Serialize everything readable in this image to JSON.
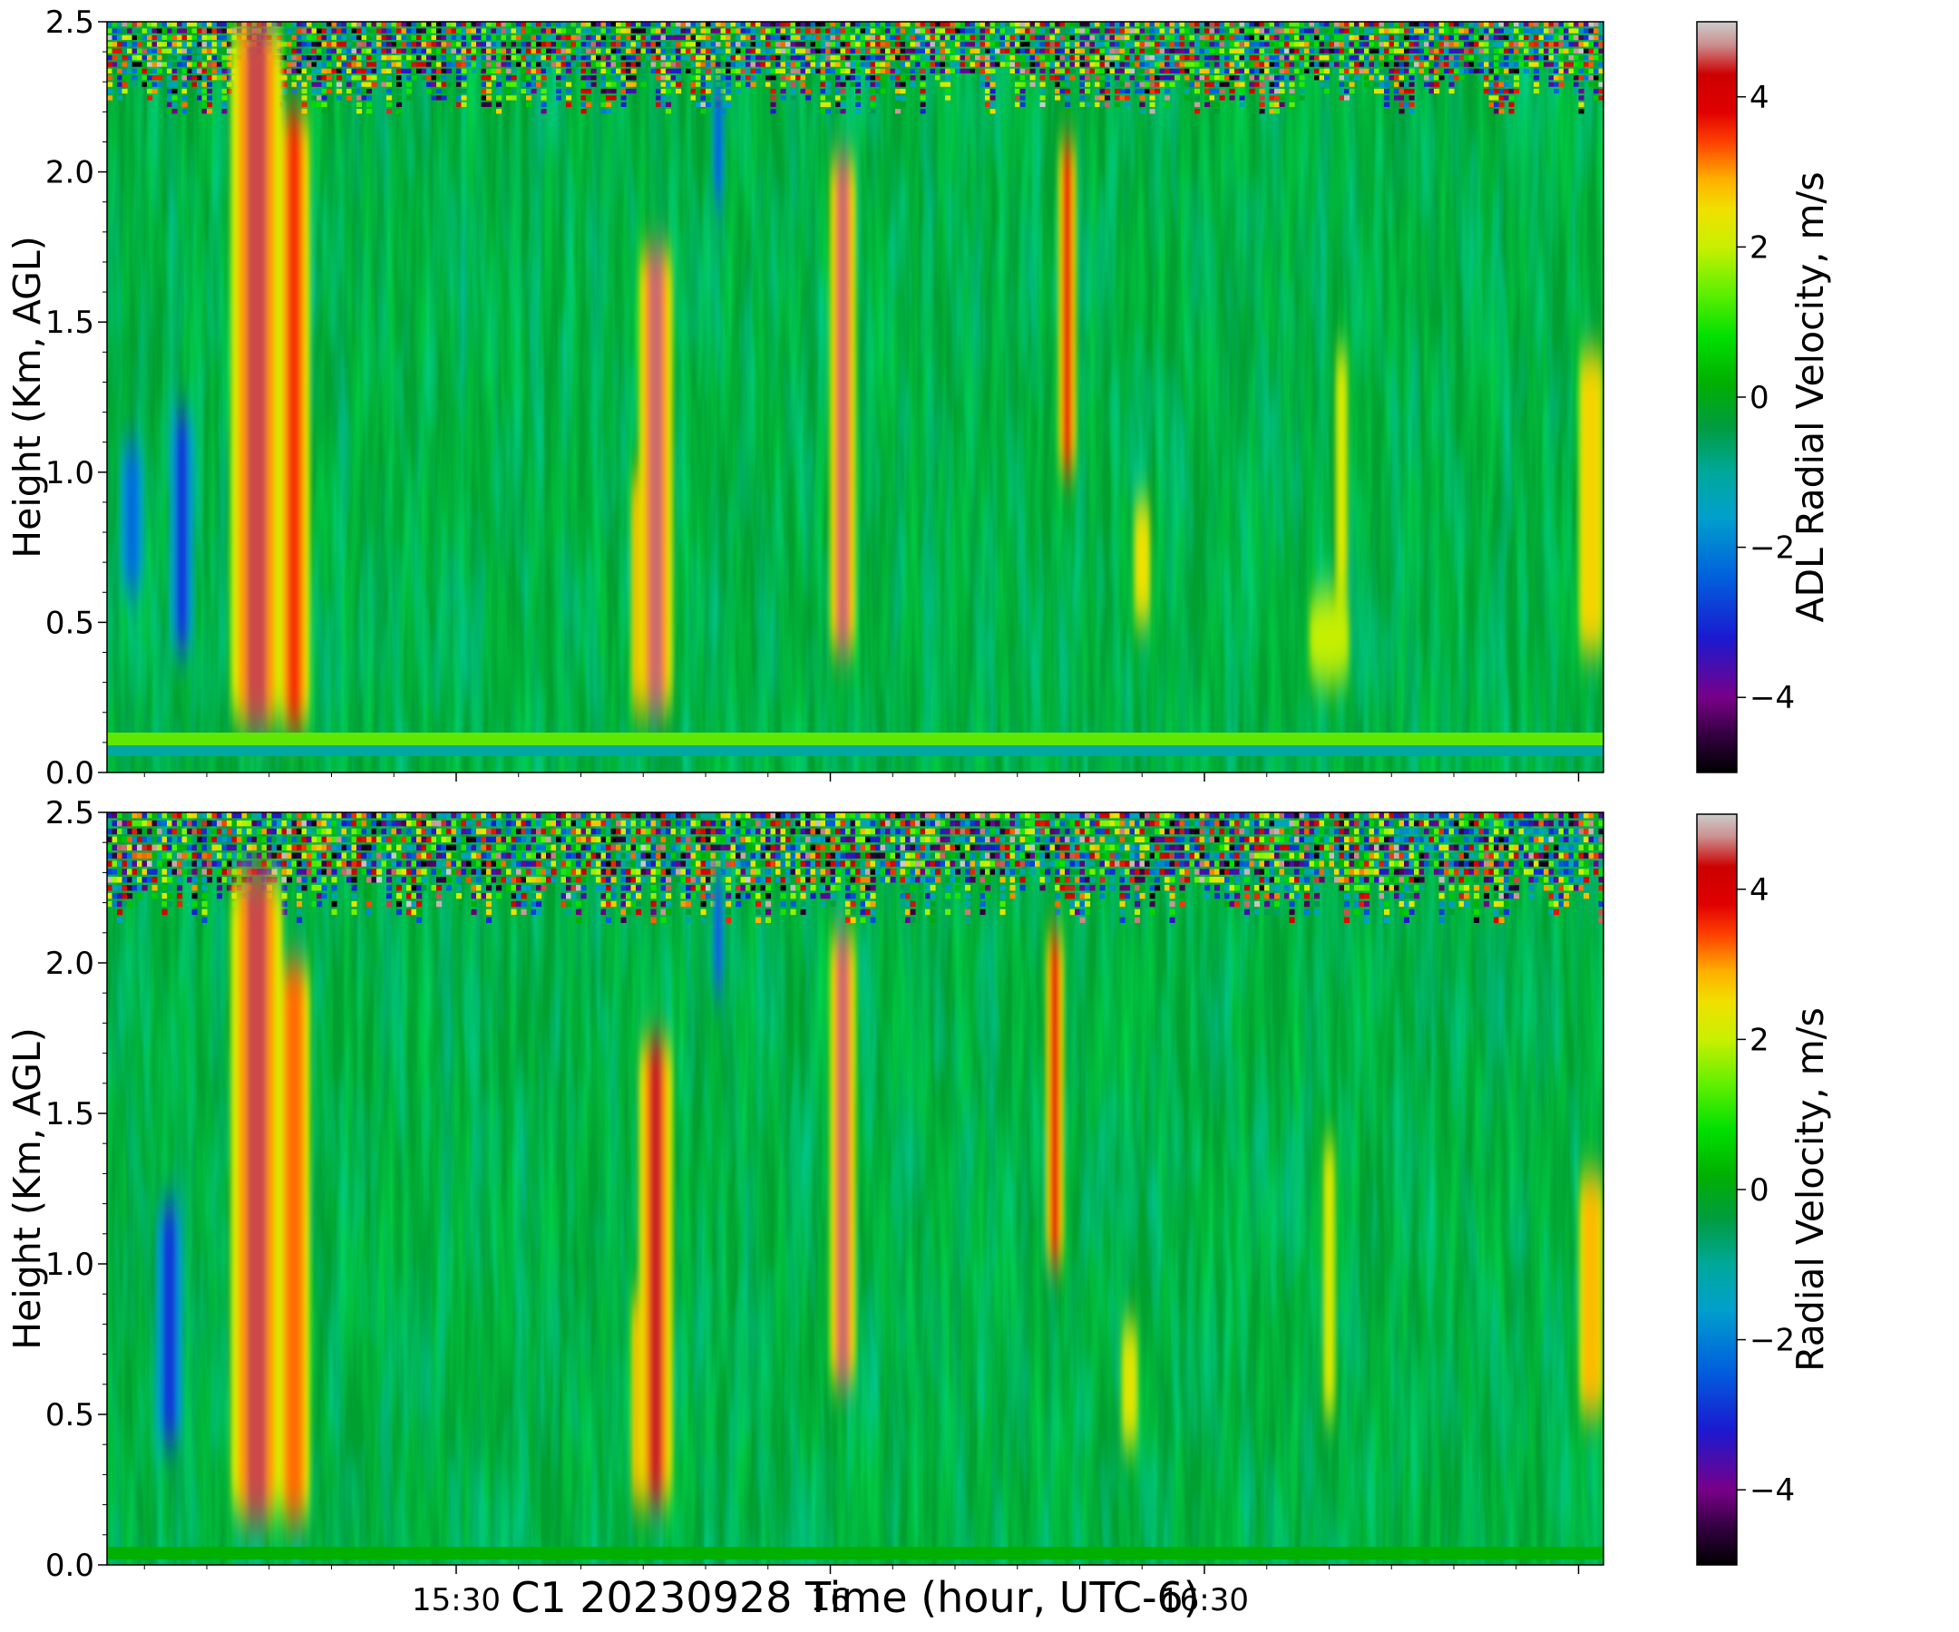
{
  "chart_data": [
    {
      "type": "heatmap",
      "panel": "top",
      "ylabel": "Height (Km, AGL)",
      "ylim": [
        0.0,
        2.5
      ],
      "yticks": [
        "0.0",
        "0.5",
        "1.0",
        "1.5",
        "2.0",
        "2.5"
      ],
      "xlim": [
        "15:02",
        "17:02"
      ],
      "xticks": [],
      "colorbar": {
        "label": "ADL Radial Velocity, m/s",
        "range": [
          -5,
          5
        ],
        "ticks": [
          "−4",
          "−2",
          "0",
          "2",
          "4"
        ],
        "colormap": "nipy_spectral"
      },
      "dominant_value": -0.5,
      "noise_above_km": 2.25,
      "bands": [
        {
          "time": "15:14",
          "v": 4.5,
          "bottom_km": 0.15,
          "top_km": 2.5,
          "width_min": 2.6
        },
        {
          "time": "15:17",
          "v": 3.5,
          "bottom_km": 0.15,
          "top_km": 2.2,
          "width_min": 1.6
        },
        {
          "time": "15:08",
          "v": -2.8,
          "bottom_km": 0.4,
          "top_km": 1.2,
          "width_min": 1.2
        },
        {
          "time": "15:04",
          "v": -2.2,
          "bottom_km": 0.6,
          "top_km": 1.1,
          "width_min": 1.2
        },
        {
          "time": "15:45",
          "v": 3.2,
          "bottom_km": 0.2,
          "top_km": 1.0,
          "width_min": 1.2
        },
        {
          "time": "15:46",
          "v": 4.6,
          "bottom_km": 0.2,
          "top_km": 1.75,
          "width_min": 1.7
        },
        {
          "time": "15:51",
          "v": -2.5,
          "bottom_km": 1.9,
          "top_km": 2.3,
          "width_min": 0.6
        },
        {
          "time": "16:01",
          "v": 4.6,
          "bottom_km": 0.4,
          "top_km": 2.05,
          "width_min": 1.3
        },
        {
          "time": "16:19",
          "v": 3.8,
          "bottom_km": 1.0,
          "top_km": 2.1,
          "width_min": 0.9
        },
        {
          "time": "16:25",
          "v": 2.5,
          "bottom_km": 0.5,
          "top_km": 0.9,
          "width_min": 0.8
        },
        {
          "time": "16:40",
          "v": 2.0,
          "bottom_km": 0.3,
          "top_km": 0.6,
          "width_min": 2.0
        },
        {
          "time": "16:41",
          "v": 2.2,
          "bottom_km": 0.6,
          "top_km": 1.4,
          "width_min": 0.5
        },
        {
          "time": "17:01",
          "v": 2.6,
          "bottom_km": 0.4,
          "top_km": 1.4,
          "width_min": 1.2
        }
      ]
    },
    {
      "type": "heatmap",
      "panel": "bottom",
      "ylabel": "Height (Km, AGL)",
      "ylim": [
        0.0,
        2.5
      ],
      "yticks": [
        "0.0",
        "0.5",
        "1.0",
        "1.5",
        "2.0",
        "2.5"
      ],
      "xlim": [
        "15:02",
        "17:02"
      ],
      "xticks": [
        "15:30",
        "16",
        "16:30"
      ],
      "xlabel": "C1 20230928 Time (hour, UTC-6)",
      "colorbar": {
        "label": "Radial Velocity, m/s",
        "range": [
          -5,
          5
        ],
        "ticks": [
          "−4",
          "−2",
          "0",
          "2",
          "4"
        ],
        "colormap": "nipy_spectral"
      },
      "dominant_value": -0.5,
      "noise_above_km": 2.2,
      "bands": [
        {
          "time": "15:14",
          "v": 4.5,
          "bottom_km": 0.15,
          "top_km": 2.3,
          "width_min": 2.6
        },
        {
          "time": "15:17",
          "v": 3.2,
          "bottom_km": 0.15,
          "top_km": 2.0,
          "width_min": 1.6
        },
        {
          "time": "15:07",
          "v": -2.8,
          "bottom_km": 0.4,
          "top_km": 1.2,
          "width_min": 1.4
        },
        {
          "time": "15:45",
          "v": 3.3,
          "bottom_km": 0.2,
          "top_km": 0.9,
          "width_min": 1.2
        },
        {
          "time": "15:46",
          "v": 4.4,
          "bottom_km": 0.2,
          "top_km": 1.75,
          "width_min": 1.7
        },
        {
          "time": "15:51",
          "v": -2.6,
          "bottom_km": 1.9,
          "top_km": 2.3,
          "width_min": 0.6
        },
        {
          "time": "16:01",
          "v": 4.6,
          "bottom_km": 0.6,
          "top_km": 2.1,
          "width_min": 1.3
        },
        {
          "time": "16:18",
          "v": 3.8,
          "bottom_km": 1.0,
          "top_km": 2.1,
          "width_min": 0.9
        },
        {
          "time": "16:24",
          "v": 2.3,
          "bottom_km": 0.4,
          "top_km": 0.8,
          "width_min": 0.8
        },
        {
          "time": "16:40",
          "v": 2.2,
          "bottom_km": 0.5,
          "top_km": 1.4,
          "width_min": 0.5
        },
        {
          "time": "17:01",
          "v": 2.8,
          "bottom_km": 0.5,
          "top_km": 1.3,
          "width_min": 1.2
        }
      ]
    }
  ]
}
